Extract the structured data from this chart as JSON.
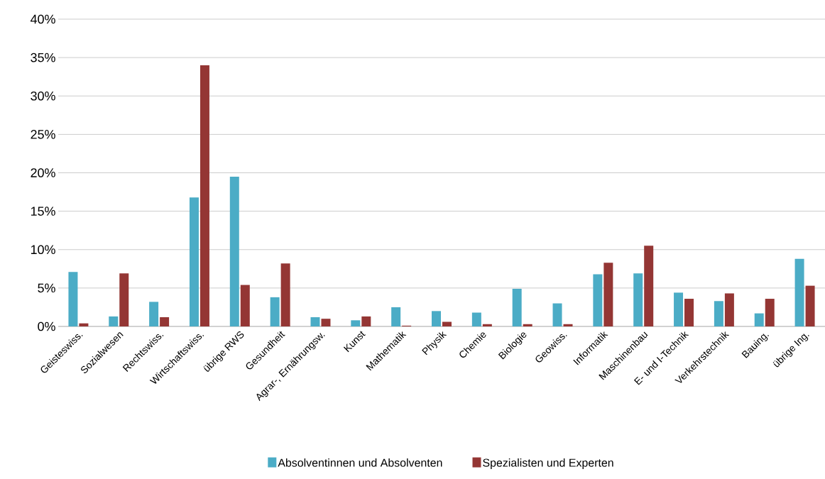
{
  "chart_data": {
    "type": "bar",
    "categories": [
      "Geisteswiss.",
      "Sozialwesen",
      "Rechtswiss.",
      "Wirtschaftswiss.",
      "übrige RWS",
      "Gesundheit",
      "Agrar-, Ernährungsw.",
      "Kunst",
      "Mathematik",
      "Physik",
      "Chemie",
      "Biologie",
      "Geowiss.",
      "Informatik",
      "Maschinenbau",
      "E- und I-Technik",
      "Verkehrstechnik",
      "Bauing.",
      "übrige Ing."
    ],
    "series": [
      {
        "name": "Absolventinnen und Absolventen",
        "color": "#4bacc6",
        "values": [
          7.1,
          1.3,
          3.2,
          16.8,
          19.5,
          3.8,
          1.2,
          0.8,
          2.5,
          2.0,
          1.8,
          4.9,
          3.0,
          6.8,
          6.9,
          4.4,
          3.3,
          1.7,
          8.8
        ]
      },
      {
        "name": "Spezialisten und Experten",
        "color": "#943634",
        "values": [
          0.4,
          6.9,
          1.2,
          34.0,
          5.4,
          8.2,
          1.0,
          1.3,
          0.1,
          0.6,
          0.3,
          0.3,
          0.3,
          8.3,
          10.5,
          3.6,
          4.3,
          3.6,
          5.3
        ]
      }
    ],
    "ylim": [
      0,
      40
    ],
    "yticks": [
      {
        "value": 0,
        "label": "0%"
      },
      {
        "value": 5,
        "label": "5%"
      },
      {
        "value": 10,
        "label": "10%"
      },
      {
        "value": 15,
        "label": "15%"
      },
      {
        "value": 20,
        "label": "20%"
      },
      {
        "value": 25,
        "label": "25%"
      },
      {
        "value": 30,
        "label": "30%"
      },
      {
        "value": 35,
        "label": "35%"
      },
      {
        "value": 40,
        "label": "40%"
      }
    ],
    "grid": "y",
    "legend": "bottom"
  }
}
